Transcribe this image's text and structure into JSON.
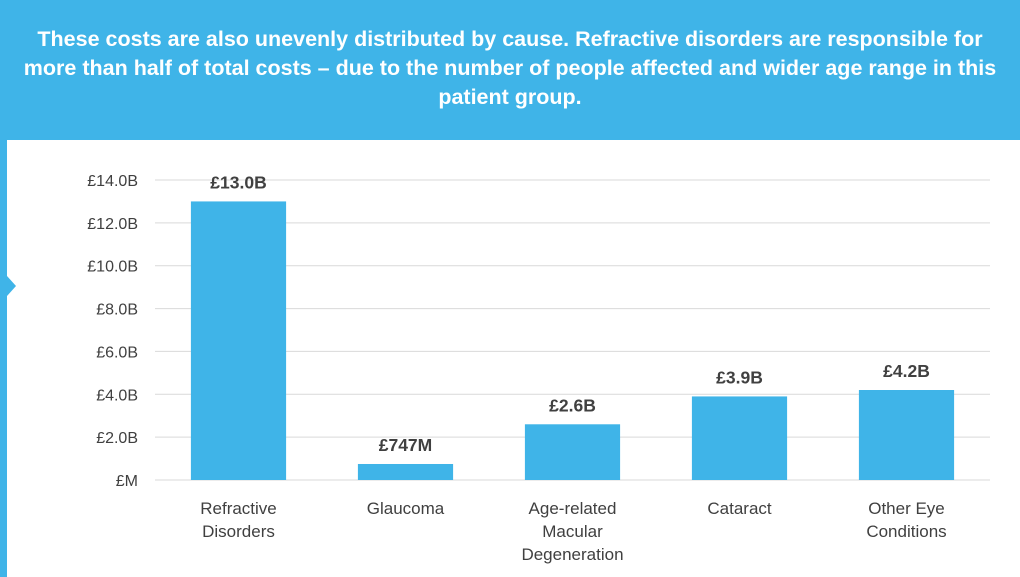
{
  "banner": {
    "text": "These costs are also unevenly distributed by cause. Refractive disorders are responsible for more than half of total costs – due to the number of people affected and wider age range in this patient group."
  },
  "colors": {
    "accent": "#3fb4e8",
    "bar": "#3fb4e8",
    "grid": "#d9d9d9",
    "text": "#404040"
  },
  "chart_data": {
    "type": "bar",
    "categories": [
      [
        "Refractive",
        "Disorders"
      ],
      [
        "Glaucoma"
      ],
      [
        "Age-related",
        "Macular",
        "Degeneration"
      ],
      [
        "Cataract"
      ],
      [
        "Other Eye",
        "Conditions"
      ]
    ],
    "values": [
      13.0,
      0.747,
      2.6,
      3.9,
      4.2
    ],
    "data_labels": [
      "£13.0B",
      "£747M",
      "£2.6B",
      "£3.9B",
      "£4.2B"
    ],
    "ylim": [
      0,
      14
    ],
    "yticks": [
      0,
      2,
      4,
      6,
      8,
      10,
      12,
      14
    ],
    "ytick_labels": [
      "£M",
      "£2.0B",
      "£4.0B",
      "£6.0B",
      "£8.0B",
      "£10.0B",
      "£12.0B",
      "£14.0B"
    ],
    "unit": "£ billions",
    "grid": true,
    "legend": "none"
  }
}
